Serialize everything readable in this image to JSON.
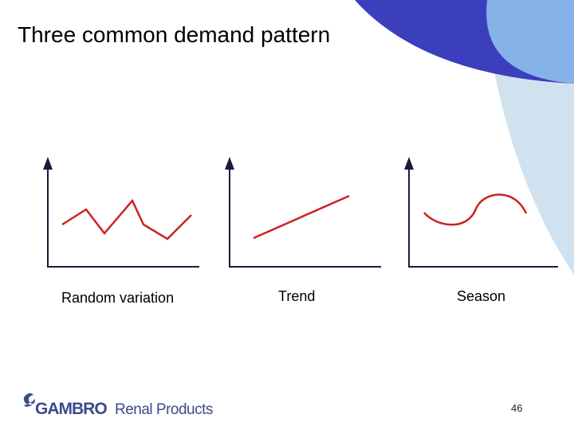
{
  "header": {
    "title": "Three common demand pattern"
  },
  "diagrams": [
    {
      "label": "Random variation"
    },
    {
      "label": "Trend"
    },
    {
      "label": "Season"
    }
  ],
  "footer": {
    "brand": "GAMBRO",
    "product": "Renal Products",
    "page_number": "46"
  }
}
